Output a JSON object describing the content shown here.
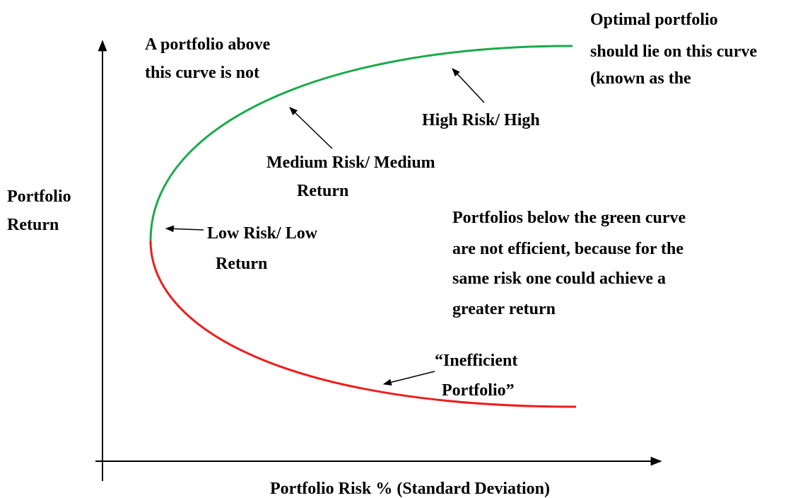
{
  "annotations": {
    "optimal": [
      "Optimal portfolio",
      "should lie on this curve",
      "(known as the"
    ],
    "above": [
      "A portfolio above",
      "this curve is not"
    ],
    "high": [
      "High Risk/ High"
    ],
    "medium": [
      "Medium Risk/ Medium",
      "Return"
    ],
    "low": [
      "Low Risk/ Low",
      "Return"
    ],
    "below": [
      "Portfolios below the green curve",
      "are not efficient, because for the",
      "same risk one could achieve a",
      "greater return"
    ],
    "inefficient": [
      "“Inefficient",
      "Portfolio”"
    ]
  },
  "axes": {
    "y_label": [
      "Portfolio",
      "Return"
    ],
    "x_label": "Portfolio Risk % (Standard Deviation)"
  }
}
